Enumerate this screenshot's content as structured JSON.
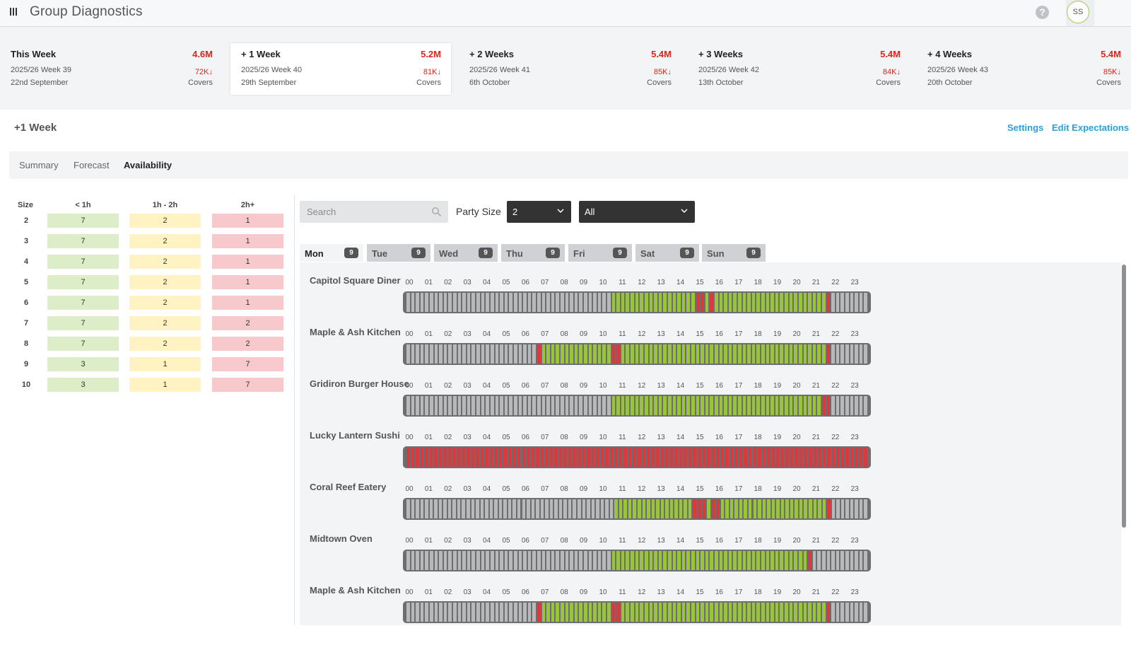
{
  "header": {
    "title": "Group Diagnostics",
    "help_icon": "question-circle-icon",
    "avatar_initials": "SS"
  },
  "weeks": [
    {
      "label": "This Week",
      "value": "4.6M",
      "week": "2025/26 Week 39",
      "date": "22nd September",
      "covers_value": "72K↓",
      "covers_label": "Covers",
      "active": false
    },
    {
      "label": "+ 1 Week",
      "value": "5.2M",
      "week": "2025/26 Week 40",
      "date": "29th September",
      "covers_value": "81K↓",
      "covers_label": "Covers",
      "active": true
    },
    {
      "label": "+ 2 Weeks",
      "value": "5.4M",
      "week": "2025/26 Week 41",
      "date": "6th October",
      "covers_value": "85K↓",
      "covers_label": "Covers",
      "active": false
    },
    {
      "label": "+ 3 Weeks",
      "value": "5.4M",
      "week": "2025/26 Week 42",
      "date": "13th October",
      "covers_value": "84K↓",
      "covers_label": "Covers",
      "active": false
    },
    {
      "label": "+ 4 Weeks",
      "value": "5.4M",
      "week": "2025/26 Week 43",
      "date": "20th October",
      "covers_value": "85K↓",
      "covers_label": "Covers",
      "active": false
    }
  ],
  "section": {
    "title": "+1 Week",
    "settings_label": "Settings",
    "edit_label": "Edit Expectations"
  },
  "tabs": [
    {
      "label": "Summary",
      "active": false
    },
    {
      "label": "Forecast",
      "active": false
    },
    {
      "label": "Availability",
      "active": true
    }
  ],
  "size_table": {
    "headers": [
      "Size",
      "< 1h",
      "1h - 2h",
      "2h+"
    ],
    "rows": [
      {
        "size": "2",
        "lt1h": "7",
        "h1to2": "2",
        "gt2h": "1"
      },
      {
        "size": "3",
        "lt1h": "7",
        "h1to2": "2",
        "gt2h": "1"
      },
      {
        "size": "4",
        "lt1h": "7",
        "h1to2": "2",
        "gt2h": "1"
      },
      {
        "size": "5",
        "lt1h": "7",
        "h1to2": "2",
        "gt2h": "1"
      },
      {
        "size": "6",
        "lt1h": "7",
        "h1to2": "2",
        "gt2h": "1"
      },
      {
        "size": "7",
        "lt1h": "7",
        "h1to2": "2",
        "gt2h": "2"
      },
      {
        "size": "8",
        "lt1h": "7",
        "h1to2": "2",
        "gt2h": "2"
      },
      {
        "size": "9",
        "lt1h": "3",
        "h1to2": "1",
        "gt2h": "7"
      },
      {
        "size": "10",
        "lt1h": "3",
        "h1to2": "1",
        "gt2h": "7"
      }
    ]
  },
  "filters": {
    "search_placeholder": "Search",
    "search_value": "",
    "party_size_label": "Party Size",
    "party_size_value": "2",
    "scope_value": "All"
  },
  "days": [
    {
      "label": "Mon",
      "count": "9",
      "active": true
    },
    {
      "label": "Tue",
      "count": "9",
      "active": false
    },
    {
      "label": "Wed",
      "count": "9",
      "active": false
    },
    {
      "label": "Thu",
      "count": "9",
      "active": false
    },
    {
      "label": "Fri",
      "count": "9",
      "active": false
    },
    {
      "label": "Sat",
      "count": "9",
      "active": false
    },
    {
      "label": "Sun",
      "count": "9",
      "active": false
    }
  ],
  "hours": [
    "00",
    "01",
    "02",
    "03",
    "04",
    "05",
    "06",
    "07",
    "08",
    "09",
    "10",
    "11",
    "12",
    "13",
    "14",
    "15",
    "16",
    "17",
    "18",
    "19",
    "20",
    "21",
    "22",
    "23"
  ],
  "legend_colors": {
    "green": "#9ac43a",
    "red": "#d93a3e",
    "grey": "#b8b9bb"
  },
  "restaurants": [
    {
      "name": "Capitol Square Diner",
      "slots": "GGGGGGGGGGGGGGGGGGGGGGGGGGGGGGGGGGGGGGGGGGGGVVVVVVVVVVVVVVVVVVRRVRVVVVVVVVVVVVVVVVVVVVVVVVRGGGGGGGG"
    },
    {
      "name": "Maple & Ash Kitchen",
      "slots": "GGGGGGGGGGGGGGGGGGGGGGGGGGGGRVVVVVVVVVVVVVVVRRVVVVVVVVVVVVVVVVVVVVVVVVVVVVVVVVVVVVVVVVVVVVRGGGGGGGG"
    },
    {
      "name": "Gridiron Burger House",
      "slots": "GGGGGGGGGGGGGGGGGGGGGGGGGGGGGGGGGGGGGGGGGGGGVVVVVVVVVVVVVVVVVVVVVVVVVVVVVVVVVVVVVVVVVVVVVRRGGGGGGGG"
    },
    {
      "name": "Lucky Lantern Sushi",
      "slots": "RRRRRRRRRRRRRRRRRRRRRRRRRRRRRRRRRRRRRRRRRRRRRRRRRRRRRRRRRRRRRRRRRRRRRRRRRRRRRRRRRRRRRRRRRRRRRRRRRRRR"
    },
    {
      "name": "Coral Reef Eatery",
      "slots": "GGGGGGGGGGGGGGGGGGGGGGGGGGGGGGGGGGGGGGGGGGGGGVVVVVVVVVVVVVVVVVRRRVRRVVVVVVVVVVVVVVVVVVVVVVVRGGGGGGGG"
    },
    {
      "name": "Midtown Oven",
      "slots": "GGGGGGGGGGGGGGGGGGGGGGGGGGGGGGGGGGGGGGGGGGGGVVVVVVVVVVVVVVVVVVVVVVVVVVVVVVVVVVVVVVVVVVRGGGGGGGGGGGG"
    },
    {
      "name": "Maple & Ash Kitchen",
      "slots": "GGGGGGGGGGGGGGGGGGGGGGGGGGGGRVVVVVVVVVVVVVVVRRVVVVVVVVVVVVVVVVVVVVVVVVVVVVVVVVVVVVVVVVVVVVRGGGGGGGG"
    }
  ]
}
